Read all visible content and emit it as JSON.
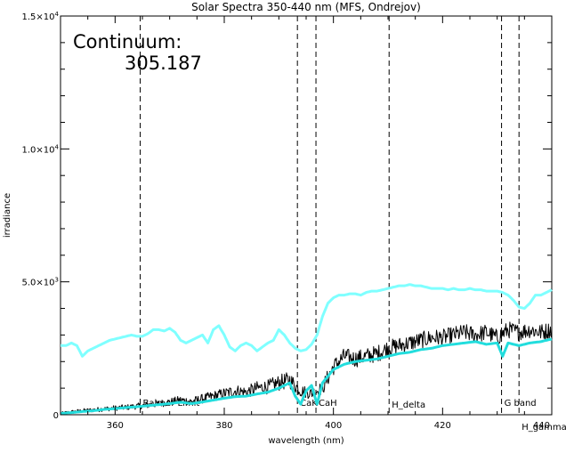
{
  "chart_data": {
    "type": "line",
    "title": "Solar Spectra 350-440 nm (MFS, Ondrejov)",
    "xlabel": "wavelength (nm)",
    "ylabel": "irradiance",
    "xlim": [
      350,
      440
    ],
    "ylim": [
      0,
      15000
    ],
    "x_ticks": [
      360,
      380,
      400,
      420,
      440
    ],
    "x_tick_labels": [
      "360",
      "380",
      "400",
      "420",
      "440"
    ],
    "y_ticks": [
      {
        "value": 0,
        "base": "0",
        "exp": ""
      },
      {
        "value": 5000,
        "base": "5.0×10",
        "exp": "3"
      },
      {
        "value": 10000,
        "base": "1.0×10",
        "exp": "4"
      },
      {
        "value": 15000,
        "base": "1.5×10",
        "exp": "4"
      }
    ],
    "annotation": {
      "label": "Continuum:",
      "value": "305.187"
    },
    "reference_lines": [
      {
        "name": "Balmer Limit",
        "x": 364.6
      },
      {
        "name": "CaK",
        "x": 393.4
      },
      {
        "name": "CaH",
        "x": 396.8
      },
      {
        "name": "H_delta",
        "x": 410.2
      },
      {
        "name": "G band",
        "x": 430.8
      },
      {
        "name": "H_gamma",
        "x": 434.0
      }
    ],
    "series": [
      {
        "style": "cyan-upper",
        "color": "#7fffff",
        "x": [
          350,
          351,
          352,
          353,
          354,
          355,
          356,
          357,
          358,
          359,
          360,
          361,
          362,
          363,
          364,
          365,
          366,
          367,
          368,
          369,
          370,
          371,
          372,
          373,
          374,
          375,
          376,
          377,
          378,
          379,
          380,
          381,
          382,
          383,
          384,
          385,
          386,
          387,
          388,
          389,
          390,
          391,
          392,
          393,
          394,
          395,
          396,
          397,
          398,
          399,
          400,
          401,
          402,
          403,
          404,
          405,
          406,
          407,
          408,
          409,
          410,
          411,
          412,
          413,
          414,
          415,
          416,
          417,
          418,
          419,
          420,
          421,
          422,
          423,
          424,
          425,
          426,
          427,
          428,
          429,
          430,
          431,
          432,
          433,
          434,
          435,
          436,
          437,
          438,
          439,
          440
        ],
        "values": [
          2600,
          2600,
          2700,
          2600,
          2200,
          2400,
          2500,
          2600,
          2700,
          2800,
          2850,
          2900,
          2950,
          3000,
          2950,
          2950,
          3050,
          3200,
          3200,
          3150,
          3250,
          3100,
          2800,
          2700,
          2800,
          2900,
          3000,
          2700,
          3200,
          3350,
          3000,
          2550,
          2400,
          2600,
          2700,
          2600,
          2400,
          2550,
          2700,
          2800,
          3200,
          3000,
          2700,
          2500,
          2400,
          2450,
          2650,
          3000,
          3700,
          4200,
          4400,
          4500,
          4500,
          4550,
          4550,
          4500,
          4600,
          4650,
          4650,
          4700,
          4750,
          4800,
          4850,
          4850,
          4900,
          4850,
          4850,
          4800,
          4750,
          4750,
          4750,
          4700,
          4750,
          4700,
          4700,
          4750,
          4700,
          4700,
          4650,
          4650,
          4650,
          4600,
          4500,
          4300,
          4050,
          4000,
          4200,
          4500,
          4500,
          4600,
          4700
        ],
        "width": 3
      },
      {
        "style": "black-noisy",
        "color": "#000000",
        "x": [
          350,
          352,
          354,
          356,
          358,
          360,
          362,
          364,
          366,
          368,
          370,
          372,
          374,
          376,
          378,
          380,
          382,
          384,
          386,
          388,
          390,
          392,
          394,
          396,
          398,
          400,
          402,
          404,
          406,
          408,
          410,
          412,
          414,
          416,
          418,
          420,
          422,
          424,
          426,
          428,
          430,
          432,
          434,
          436,
          438,
          440
        ],
        "values": [
          50,
          100,
          150,
          180,
          220,
          250,
          280,
          320,
          360,
          420,
          480,
          550,
          500,
          600,
          700,
          800,
          900,
          850,
          1000,
          1050,
          1200,
          1300,
          900,
          800,
          1000,
          1800,
          2200,
          2100,
          2200,
          2300,
          2500,
          2600,
          2700,
          2800,
          2900,
          2900,
          3000,
          3100,
          3000,
          3100,
          2900,
          3200,
          3100,
          3200,
          3100,
          3200
        ],
        "noise": 320,
        "width": 1
      },
      {
        "style": "cyan-smooth",
        "color": "#22dddd",
        "x": [
          350,
          352,
          354,
          356,
          358,
          360,
          362,
          364,
          366,
          368,
          370,
          372,
          374,
          376,
          378,
          380,
          382,
          384,
          386,
          388,
          390,
          392,
          393,
          394,
          395,
          396,
          397,
          398,
          400,
          402,
          404,
          406,
          408,
          410,
          412,
          414,
          416,
          418,
          420,
          422,
          424,
          426,
          428,
          430,
          431,
          432,
          434,
          436,
          438,
          440
        ],
        "values": [
          50,
          80,
          120,
          150,
          200,
          230,
          270,
          300,
          340,
          380,
          420,
          470,
          420,
          480,
          550,
          620,
          680,
          700,
          780,
          850,
          1000,
          1200,
          700,
          400,
          900,
          1100,
          400,
          1200,
          1700,
          1900,
          2000,
          2050,
          2100,
          2200,
          2300,
          2350,
          2450,
          2500,
          2600,
          2650,
          2700,
          2750,
          2650,
          2700,
          2200,
          2700,
          2600,
          2700,
          2750,
          2850
        ],
        "width": 3
      }
    ],
    "grid": false,
    "legend": "none"
  }
}
